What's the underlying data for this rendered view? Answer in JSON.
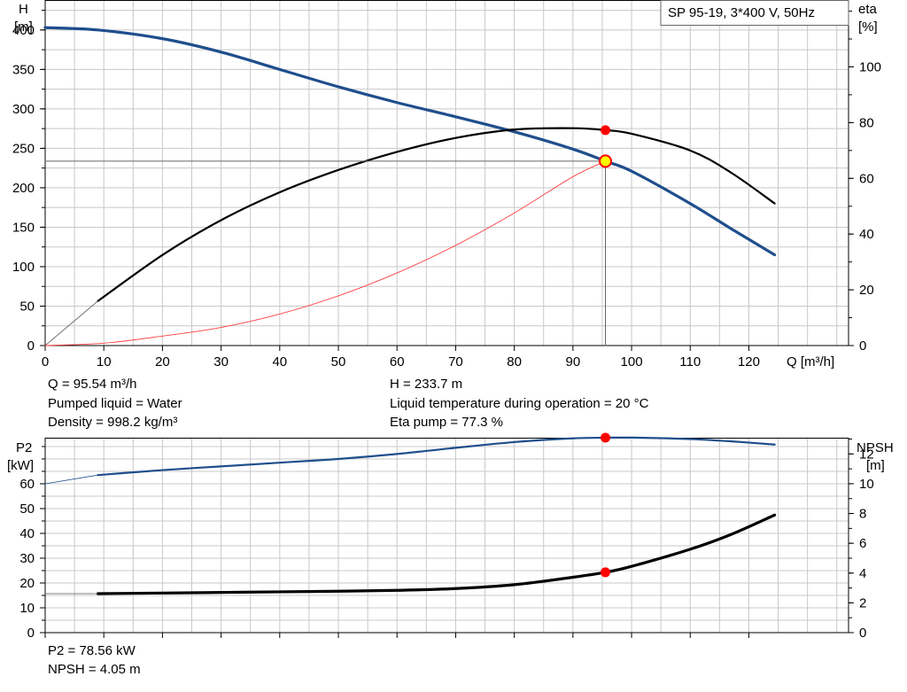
{
  "title_box": "SP 95-19, 3*400 V, 50Hz",
  "top_panel": {
    "left_axis": {
      "name": "H",
      "unit": "[m]",
      "ticks": [
        0,
        50,
        100,
        150,
        200,
        250,
        300,
        350,
        400
      ]
    },
    "right_axis": {
      "name": "eta",
      "unit": "[%]",
      "ticks": [
        0,
        20,
        40,
        60,
        80,
        100
      ]
    },
    "x_axis": {
      "label": "Q [m³/h]",
      "ticks": [
        0,
        10,
        20,
        30,
        40,
        50,
        60,
        70,
        80,
        90,
        100,
        110,
        120
      ]
    }
  },
  "bottom_panel": {
    "left_axis": {
      "name": "P2",
      "unit": "[kW]",
      "ticks": [
        0,
        10,
        20,
        30,
        40,
        50,
        60
      ]
    },
    "right_axis": {
      "name": "NPSH",
      "unit": "[m]",
      "ticks": [
        0,
        2,
        4,
        6,
        8,
        10,
        12
      ]
    }
  },
  "info": {
    "q": "Q = 95.54 m³/h",
    "h": "H = 233.7 m",
    "liquid": "Pumped liquid = Water",
    "temperature": "Liquid temperature during operation = 20 °C",
    "density": "Density = 998.2 kg/m³",
    "eta": "Eta pump = 77.3 %",
    "p2": "P2 = 78.56 kW",
    "npsh": "NPSH = 4.05 m"
  },
  "colors": {
    "head_curve": "#1f4e8c",
    "eta_curve": "#000000",
    "system_curve": "#ff4040",
    "operating_point": "#ff0000",
    "duty_marker": "#ffff00",
    "grid": "#c8c8c8"
  },
  "chart_data": [
    {
      "type": "line",
      "panel": "top",
      "xlabel": "Q [m³/h]",
      "ylabel": "H [m]",
      "y2label": "eta [%]",
      "xlim": [
        0,
        137
      ],
      "ylim": [
        0,
        438
      ],
      "y2lim": [
        0,
        124
      ],
      "grid": true,
      "series": [
        {
          "role": "head",
          "axis": "left",
          "x": [
            0,
            9,
            20,
            30,
            40,
            50,
            60,
            70,
            80,
            90,
            95.54,
            100,
            110,
            117,
            124.4
          ],
          "y": [
            403,
            400,
            389,
            372,
            350,
            328,
            308,
            290,
            271,
            249,
            233.7,
            221,
            180,
            148,
            115
          ]
        },
        {
          "role": "head_extrapolated",
          "axis": "left",
          "x": [
            0,
            9
          ],
          "y": [
            403,
            400
          ]
        },
        {
          "role": "eta",
          "axis": "right",
          "x": [
            9,
            20,
            30,
            40,
            50,
            60,
            70,
            80,
            90,
            95.54,
            100,
            110,
            117,
            124.4
          ],
          "y": [
            16,
            32.5,
            45,
            55,
            63,
            69.5,
            74.5,
            77.5,
            78,
            77.3,
            76,
            70,
            62,
            51
          ]
        },
        {
          "role": "eta_extrapolated",
          "axis": "right",
          "x": [
            0,
            9
          ],
          "y": [
            0,
            16
          ]
        },
        {
          "role": "system_curve",
          "axis": "left",
          "x": [
            0,
            10,
            20,
            30,
            40,
            50,
            60,
            70,
            80,
            90,
            95.54
          ],
          "y": [
            0,
            3,
            12,
            23,
            40,
            63,
            92,
            127,
            168,
            214,
            233.7
          ]
        },
        {
          "role": "duty_lines",
          "axis": "left",
          "x": [
            0,
            95.54,
            95.54
          ],
          "y": [
            233.7,
            233.7,
            0
          ]
        }
      ],
      "points": [
        {
          "role": "duty_point",
          "axis": "left",
          "x": 95.54,
          "y": 233.7
        },
        {
          "role": "eta_point",
          "axis": "right",
          "x": 95.54,
          "y": 77.3
        }
      ]
    },
    {
      "type": "line",
      "panel": "bottom",
      "xlabel": "Q [m³/h]",
      "ylabel": "P2 [kW]",
      "y2label": "NPSH [m]",
      "xlim": [
        0,
        137
      ],
      "ylim": [
        0,
        78.56
      ],
      "y2lim": [
        0,
        13.09
      ],
      "grid": true,
      "series": [
        {
          "role": "p2",
          "axis": "left",
          "x": [
            9,
            20,
            30,
            40,
            50,
            60,
            70,
            80,
            90,
            95.54,
            100,
            110,
            117,
            124.4
          ],
          "y": [
            63.5,
            65.5,
            67,
            68.5,
            70,
            72,
            74.5,
            76.8,
            78.3,
            78.56,
            78.6,
            78,
            77.1,
            75.8
          ]
        },
        {
          "role": "p2_extrapolated",
          "axis": "left",
          "x": [
            0,
            9
          ],
          "y": [
            60,
            63.5
          ]
        },
        {
          "role": "npsh",
          "axis": "right",
          "x": [
            9,
            20,
            30,
            40,
            50,
            60,
            70,
            80,
            90,
            95.54,
            100,
            110,
            117,
            124.4
          ],
          "y": [
            2.62,
            2.66,
            2.7,
            2.74,
            2.78,
            2.84,
            2.96,
            3.22,
            3.72,
            4.05,
            4.45,
            5.6,
            6.6,
            7.9
          ]
        },
        {
          "role": "npsh_extrapolated",
          "axis": "right",
          "x": [
            0,
            9
          ],
          "y": [
            2.62,
            2.62
          ]
        }
      ],
      "points": [
        {
          "role": "p2_point",
          "axis": "left",
          "x": 95.54,
          "y": 78.56
        },
        {
          "role": "npsh_point",
          "axis": "right",
          "x": 95.54,
          "y": 4.05
        }
      ]
    }
  ]
}
